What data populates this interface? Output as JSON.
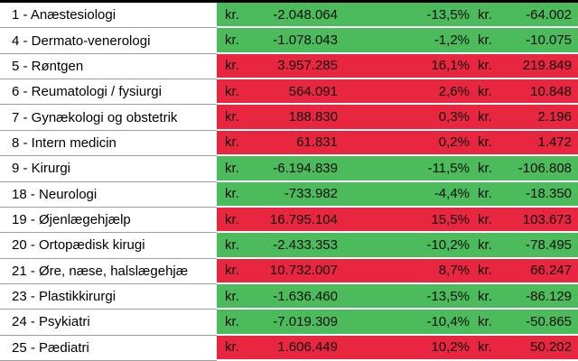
{
  "table": {
    "currency_label": "kr.",
    "colors": {
      "positive_row_bg": "#e92640",
      "negative_row_bg": "#4cbb5c",
      "grid_line": "#9d9d9d",
      "top_border": "#000000",
      "text": "#000000"
    },
    "rows": [
      {
        "label": "1 - Anæstesiologi",
        "amount": "-2.048.064",
        "percent": "-13,5%",
        "per_unit": "-64.002",
        "status": "green"
      },
      {
        "label": "4 - Dermato-venerologi",
        "amount": "-1.078.043",
        "percent": "-1,2%",
        "per_unit": "-10.075",
        "status": "green"
      },
      {
        "label": "5 - Røntgen",
        "amount": "3.957.285",
        "percent": "16,1%",
        "per_unit": "219.849",
        "status": "red"
      },
      {
        "label": "6 - Reumatologi / fysiurgi",
        "amount": "564.091",
        "percent": "2,6%",
        "per_unit": "10.848",
        "status": "red"
      },
      {
        "label": "7 - Gynækologi og obstetrik",
        "amount": "188.830",
        "percent": "0,3%",
        "per_unit": "2.196",
        "status": "red"
      },
      {
        "label": "8 - Intern medicin",
        "amount": "61.831",
        "percent": "0,2%",
        "per_unit": "1.472",
        "status": "red"
      },
      {
        "label": "9 - Kirurgi",
        "amount": "-6.194.839",
        "percent": "-11,5%",
        "per_unit": "-106.808",
        "status": "green"
      },
      {
        "label": "18 - Neurologi",
        "amount": "-733.982",
        "percent": "-4,4%",
        "per_unit": "-18.350",
        "status": "green"
      },
      {
        "label": "19 - Øjenlægehjælp",
        "amount": "16.795.104",
        "percent": "15,5%",
        "per_unit": "103.673",
        "status": "red"
      },
      {
        "label": "20 - Ortopædisk kirugi",
        "amount": "-2.433.353",
        "percent": "-10,2%",
        "per_unit": "-78.495",
        "status": "green"
      },
      {
        "label": "21 - Øre, næse, halslægehjæ",
        "amount": "10.732.007",
        "percent": "8,7%",
        "per_unit": "66.247",
        "status": "red"
      },
      {
        "label": "23 - Plastikkirurgi",
        "amount": "-1.636.460",
        "percent": "-13,5%",
        "per_unit": "-86.129",
        "status": "green"
      },
      {
        "label": "24 - Psykiatri",
        "amount": "-7.019.309",
        "percent": "-10,4%",
        "per_unit": "-50.865",
        "status": "green"
      },
      {
        "label": "25 - Pædiatri",
        "amount": "1.606.449",
        "percent": "10,2%",
        "per_unit": "50.202",
        "status": "red"
      }
    ]
  }
}
